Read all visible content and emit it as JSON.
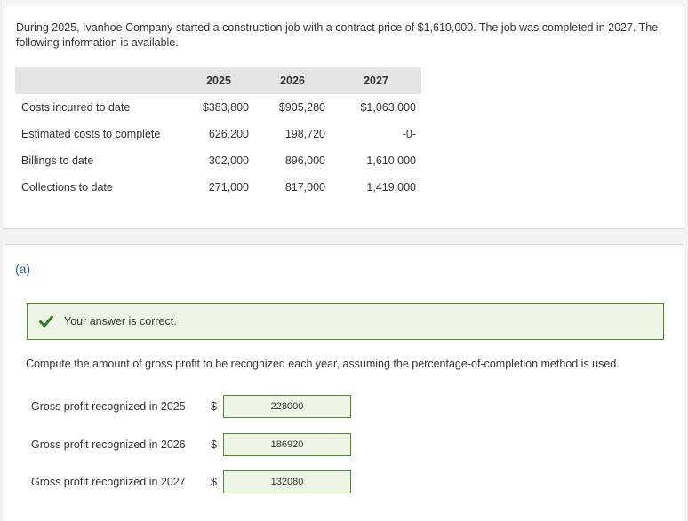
{
  "problem": {
    "intro": "During 2025, Ivanhoe Company started a construction job with a contract price of $1,610,000. The job was completed in 2027. The following information is available.",
    "table": {
      "headers": [
        "",
        "2025",
        "2026",
        "2027"
      ],
      "rows": [
        {
          "label": "Costs incurred to date",
          "values": [
            "$383,800",
            "$905,280",
            "$1,063,000"
          ]
        },
        {
          "label": "Estimated costs to complete",
          "values": [
            "626,200",
            "198,720",
            "-0-"
          ]
        },
        {
          "label": "Billings to date",
          "values": [
            "302,000",
            "896,000",
            "1,610,000"
          ]
        },
        {
          "label": "Collections to date",
          "values": [
            "271,000",
            "817,000",
            "1,419,000"
          ]
        }
      ]
    }
  },
  "answer": {
    "part_label": "(a)",
    "feedback": "Your answer is correct.",
    "question": "Compute the amount of gross profit to be recognized each year, assuming the percentage-of-completion method is used.",
    "currency_symbol": "$",
    "rows": [
      {
        "label": "Gross profit recognized in 2025",
        "value": "228000"
      },
      {
        "label": "Gross profit recognized in 2026",
        "value": "186920"
      },
      {
        "label": "Gross profit recognized in 2027",
        "value": "132080"
      }
    ]
  },
  "colors": {
    "correct_border": "#4f8a2b",
    "correct_fill": "#eef4e6",
    "header_fill": "#e5e5e5",
    "part_label": "#1f5fa8"
  },
  "icons": {
    "feedback": "checkmark-icon"
  }
}
